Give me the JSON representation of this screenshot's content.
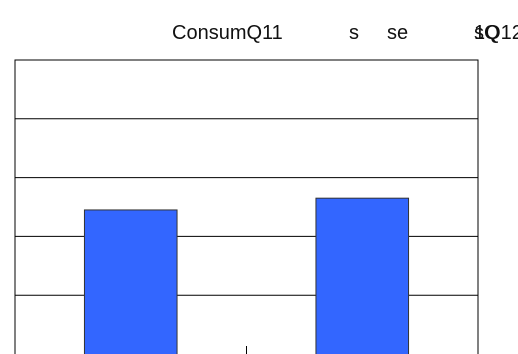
{
  "header": {
    "fragments": [
      "ConsumQ11",
      "s",
      "se",
      "1Q12",
      "sQ"
    ]
  },
  "chart_data": {
    "type": "bar",
    "categories": [
      "",
      ""
    ],
    "values": [
      2.45,
      2.65
    ],
    "ylim": [
      0,
      5
    ],
    "grid": true,
    "bar_color": "#3366ff",
    "gridline_color": "#000000"
  }
}
